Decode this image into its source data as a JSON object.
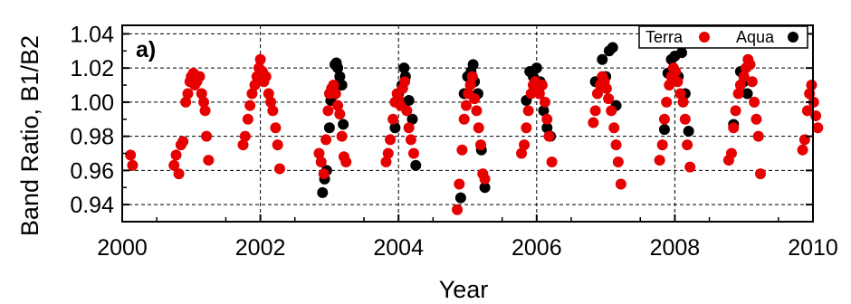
{
  "chart_data": {
    "type": "scatter",
    "panel_label": "a)",
    "xlabel": "Year",
    "ylabel": "Band Ratio, B1/B2",
    "xlim": [
      2000,
      2010
    ],
    "ylim": [
      0.93,
      1.045
    ],
    "x_ticks": [
      2000,
      2002,
      2004,
      2006,
      2008,
      2010
    ],
    "x_tick_labels": [
      "2000",
      "2002",
      "2004",
      "2006",
      "2008",
      "2010"
    ],
    "y_ticks": [
      0.94,
      0.96,
      0.98,
      1.0,
      1.02,
      1.04
    ],
    "y_tick_labels": [
      "0.94",
      "0.96",
      "0.98",
      "1.00",
      "1.02",
      "1.04"
    ],
    "grid": true,
    "legend_position": "top-right",
    "series": [
      {
        "name": "Aqua",
        "color": "#000000",
        "points": [
          [
            2002.9,
            0.947
          ],
          [
            2002.93,
            0.955
          ],
          [
            2002.96,
            0.96
          ],
          [
            2003.0,
            0.985
          ],
          [
            2003.02,
            1.001
          ],
          [
            2003.05,
            1.004
          ],
          [
            2003.08,
            1.022
          ],
          [
            2003.1,
            1.023
          ],
          [
            2003.12,
            1.02
          ],
          [
            2003.15,
            1.015
          ],
          [
            2003.18,
            1.01
          ],
          [
            2003.2,
            0.987
          ],
          [
            2003.95,
            0.985
          ],
          [
            2004.0,
            1.005
          ],
          [
            2004.05,
            1.01
          ],
          [
            2004.08,
            1.02
          ],
          [
            2004.1,
            1.015
          ],
          [
            2004.15,
            1.001
          ],
          [
            2004.2,
            0.99
          ],
          [
            2004.25,
            0.963
          ],
          [
            2004.9,
            0.944
          ],
          [
            2004.95,
            1.005
          ],
          [
            2005.0,
            1.015
          ],
          [
            2005.05,
            1.018
          ],
          [
            2005.08,
            1.022
          ],
          [
            2005.1,
            1.012
          ],
          [
            2005.15,
            1.005
          ],
          [
            2005.2,
            0.972
          ],
          [
            2005.25,
            0.95
          ],
          [
            2005.85,
            1.001
          ],
          [
            2005.9,
            1.018
          ],
          [
            2005.95,
            1.015
          ],
          [
            2006.0,
            1.02
          ],
          [
            2006.05,
            1.012
          ],
          [
            2006.1,
            0.995
          ],
          [
            2006.15,
            0.985
          ],
          [
            2006.2,
            0.98
          ],
          [
            2006.85,
            1.012
          ],
          [
            2006.95,
            1.025
          ],
          [
            2007.0,
            1.015
          ],
          [
            2007.05,
            1.03
          ],
          [
            2007.1,
            1.032
          ],
          [
            2007.15,
            0.998
          ],
          [
            2007.85,
            0.984
          ],
          [
            2007.9,
            1.017
          ],
          [
            2007.95,
            1.025
          ],
          [
            2008.0,
            1.027
          ],
          [
            2008.05,
            1.015
          ],
          [
            2008.1,
            1.029
          ],
          [
            2008.15,
            1.005
          ],
          [
            2008.2,
            0.983
          ],
          [
            2008.85,
            0.987
          ],
          [
            2008.95,
            1.018
          ],
          [
            2009.0,
            1.012
          ],
          [
            2009.05,
            1.005
          ]
        ]
      },
      {
        "name": "Terra",
        "color": "#e60000",
        "points": [
          [
            2000.12,
            0.969
          ],
          [
            2000.15,
            0.963
          ],
          [
            2000.75,
            0.963
          ],
          [
            2000.78,
            0.969
          ],
          [
            2000.82,
            0.958
          ],
          [
            2000.85,
            0.975
          ],
          [
            2000.88,
            0.977
          ],
          [
            2000.92,
            1.0
          ],
          [
            2000.95,
            1.005
          ],
          [
            2000.98,
            1.012
          ],
          [
            2001.0,
            1.015
          ],
          [
            2001.03,
            1.017
          ],
          [
            2001.05,
            1.01
          ],
          [
            2001.08,
            1.012
          ],
          [
            2001.12,
            1.015
          ],
          [
            2001.15,
            1.005
          ],
          [
            2001.18,
            1.0
          ],
          [
            2001.2,
            0.995
          ],
          [
            2001.22,
            0.98
          ],
          [
            2001.25,
            0.966
          ],
          [
            2001.75,
            0.975
          ],
          [
            2001.78,
            0.98
          ],
          [
            2001.82,
            0.99
          ],
          [
            2001.85,
            0.998
          ],
          [
            2001.88,
            1.005
          ],
          [
            2001.92,
            1.01
          ],
          [
            2001.95,
            1.015
          ],
          [
            2001.98,
            1.02
          ],
          [
            2002.0,
            1.025
          ],
          [
            2002.03,
            1.018
          ],
          [
            2002.05,
            1.012
          ],
          [
            2002.08,
            1.015
          ],
          [
            2002.12,
            1.005
          ],
          [
            2002.15,
            1.0
          ],
          [
            2002.18,
            0.995
          ],
          [
            2002.22,
            0.985
          ],
          [
            2002.25,
            0.975
          ],
          [
            2002.28,
            0.961
          ],
          [
            2002.85,
            0.97
          ],
          [
            2002.88,
            0.965
          ],
          [
            2002.92,
            0.958
          ],
          [
            2002.95,
            0.978
          ],
          [
            2002.98,
            0.995
          ],
          [
            2003.0,
            1.005
          ],
          [
            2003.03,
            1.008
          ],
          [
            2003.06,
            1.01
          ],
          [
            2003.09,
            1.005
          ],
          [
            2003.12,
            0.998
          ],
          [
            2003.15,
            0.993
          ],
          [
            2003.18,
            0.98
          ],
          [
            2003.21,
            0.968
          ],
          [
            2003.24,
            0.965
          ],
          [
            2003.82,
            0.965
          ],
          [
            2003.85,
            0.97
          ],
          [
            2003.88,
            0.978
          ],
          [
            2003.92,
            0.99
          ],
          [
            2003.95,
            1.0
          ],
          [
            2003.98,
            1.005
          ],
          [
            2004.0,
            1.002
          ],
          [
            2004.03,
            0.998
          ],
          [
            2004.06,
            1.008
          ],
          [
            2004.09,
            1.012
          ],
          [
            2004.12,
            0.995
          ],
          [
            2004.15,
            0.985
          ],
          [
            2004.18,
            0.978
          ],
          [
            2004.22,
            0.97
          ],
          [
            2004.85,
            0.937
          ],
          [
            2004.88,
            0.952
          ],
          [
            2004.92,
            0.972
          ],
          [
            2004.95,
            0.99
          ],
          [
            2004.98,
            0.998
          ],
          [
            2005.01,
            1.005
          ],
          [
            2005.04,
            1.01
          ],
          [
            2005.07,
            1.015
          ],
          [
            2005.1,
            1.002
          ],
          [
            2005.13,
            0.995
          ],
          [
            2005.16,
            0.985
          ],
          [
            2005.19,
            0.975
          ],
          [
            2005.22,
            0.958
          ],
          [
            2005.25,
            0.955
          ],
          [
            2005.78,
            0.97
          ],
          [
            2005.82,
            0.975
          ],
          [
            2005.85,
            0.985
          ],
          [
            2005.88,
            0.995
          ],
          [
            2005.92,
            1.005
          ],
          [
            2005.95,
            1.01
          ],
          [
            2005.98,
            1.012
          ],
          [
            2006.01,
            1.008
          ],
          [
            2006.04,
            1.005
          ],
          [
            2006.08,
            1.01
          ],
          [
            2006.12,
            1.0
          ],
          [
            2006.15,
            0.99
          ],
          [
            2006.18,
            0.98
          ],
          [
            2006.22,
            0.965
          ],
          [
            2006.82,
            0.988
          ],
          [
            2006.85,
            0.995
          ],
          [
            2006.88,
            1.005
          ],
          [
            2006.92,
            1.01
          ],
          [
            2006.95,
            1.015
          ],
          [
            2006.98,
            1.012
          ],
          [
            2007.01,
            1.008
          ],
          [
            2007.04,
            1.002
          ],
          [
            2007.08,
            0.995
          ],
          [
            2007.12,
            0.985
          ],
          [
            2007.15,
            0.975
          ],
          [
            2007.18,
            0.965
          ],
          [
            2007.22,
            0.952
          ],
          [
            2007.78,
            0.966
          ],
          [
            2007.82,
            0.975
          ],
          [
            2007.85,
            0.99
          ],
          [
            2007.88,
            1.0
          ],
          [
            2007.92,
            1.01
          ],
          [
            2007.95,
            1.015
          ],
          [
            2007.98,
            1.02
          ],
          [
            2008.01,
            1.018
          ],
          [
            2008.04,
            1.012
          ],
          [
            2008.08,
            1.005
          ],
          [
            2008.12,
            1.0
          ],
          [
            2008.15,
            0.99
          ],
          [
            2008.18,
            0.975
          ],
          [
            2008.22,
            0.962
          ],
          [
            2008.78,
            0.966
          ],
          [
            2008.82,
            0.97
          ],
          [
            2008.85,
            0.985
          ],
          [
            2008.88,
            0.995
          ],
          [
            2008.92,
            1.005
          ],
          [
            2008.95,
            1.01
          ],
          [
            2009.0,
            1.015
          ],
          [
            2009.03,
            1.02
          ],
          [
            2009.06,
            1.025
          ],
          [
            2009.09,
            1.022
          ],
          [
            2009.12,
            1.012
          ],
          [
            2009.15,
            1.0
          ],
          [
            2009.18,
            0.99
          ],
          [
            2009.21,
            0.98
          ],
          [
            2009.24,
            0.958
          ],
          [
            2009.85,
            0.972
          ],
          [
            2009.88,
            0.978
          ],
          [
            2009.92,
            0.995
          ],
          [
            2009.95,
            1.005
          ],
          [
            2009.98,
            1.01
          ],
          [
            2010.01,
            1.0
          ],
          [
            2010.04,
            0.992
          ],
          [
            2010.07,
            0.985
          ]
        ]
      }
    ]
  }
}
